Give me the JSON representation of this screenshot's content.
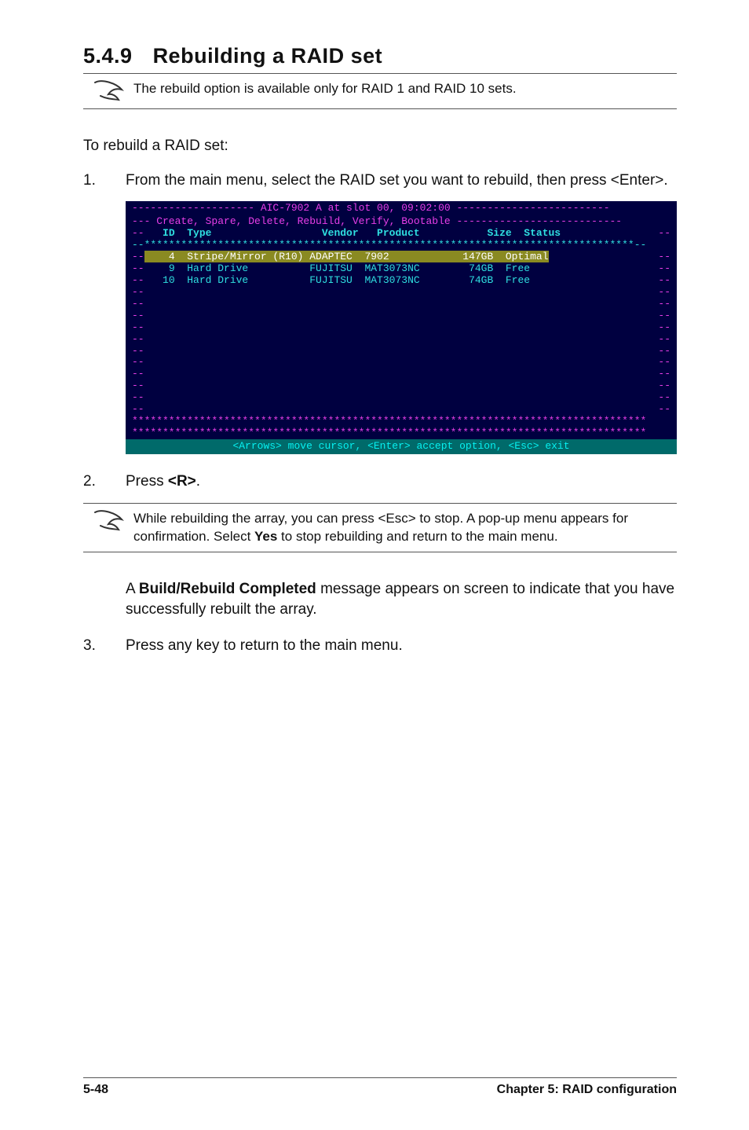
{
  "section": {
    "number": "5.4.9",
    "title": "Rebuilding a RAID set"
  },
  "note1": {
    "text": "The rebuild option is available only for RAID 1 and RAID 10 sets."
  },
  "intro": "To rebuild a RAID set:",
  "steps": {
    "s1": {
      "num": "1.",
      "text_a": "From the main menu, select the RAID set you want to rebuild, then press <Enter>."
    },
    "s2": {
      "num": "2.",
      "text_a": "Press ",
      "key": "<R>",
      "text_b": "."
    },
    "s3": {
      "num": "3.",
      "text_a": "Press any key to return to the main menu."
    }
  },
  "bios": {
    "title_line": "-------------------- AIC-7902 A at slot 00, 09:02:00 -------------------------",
    "menu_line": "--- Create, Spare, Delete, Rebuild, Verify, Bootable ---------------------------",
    "col_id": "ID",
    "col_type": "Type",
    "col_vendor": "Vendor",
    "col_product": "Product",
    "col_size": "Size",
    "col_status": "Status",
    "rows": [
      {
        "id": "4",
        "type": "Stripe/Mirror (R10)",
        "vendor": "ADAPTEC",
        "product": "7902",
        "size": "147GB",
        "status": "Optimal",
        "selected": true
      },
      {
        "id": "9",
        "type": "Hard Drive",
        "vendor": "FUJITSU",
        "product": "MAT3073NC",
        "size": "74GB",
        "status": "Free",
        "selected": false
      },
      {
        "id": "10",
        "type": "Hard Drive",
        "vendor": "FUJITSU",
        "product": "MAT3073NC",
        "size": "74GB",
        "status": "Free",
        "selected": false
      }
    ],
    "footer": "<Arrows> move cursor, <Enter> accept option, <Esc> exit",
    "colors": {
      "background": "#000040",
      "magenta": "#e83ee8",
      "cyan": "#2fdfe0",
      "selected_bg": "#8a8a22",
      "footer_bg": "#006a6a",
      "footer_fg": "#06f0f0"
    }
  },
  "note2": {
    "text_a": "While rebuilding the array, you can press <Esc> to stop. A pop-up menu appears for confirmation. Select ",
    "bold": "Yes",
    "text_b": " to stop rebuilding and return to the main menu."
  },
  "result_para": {
    "a": "A ",
    "b": "Build/Rebuild Completed",
    "c": " message appears on screen to indicate that you have successfully rebuilt the array."
  },
  "page_footer": {
    "left": "5-48",
    "right": "Chapter 5: RAID configuration"
  }
}
